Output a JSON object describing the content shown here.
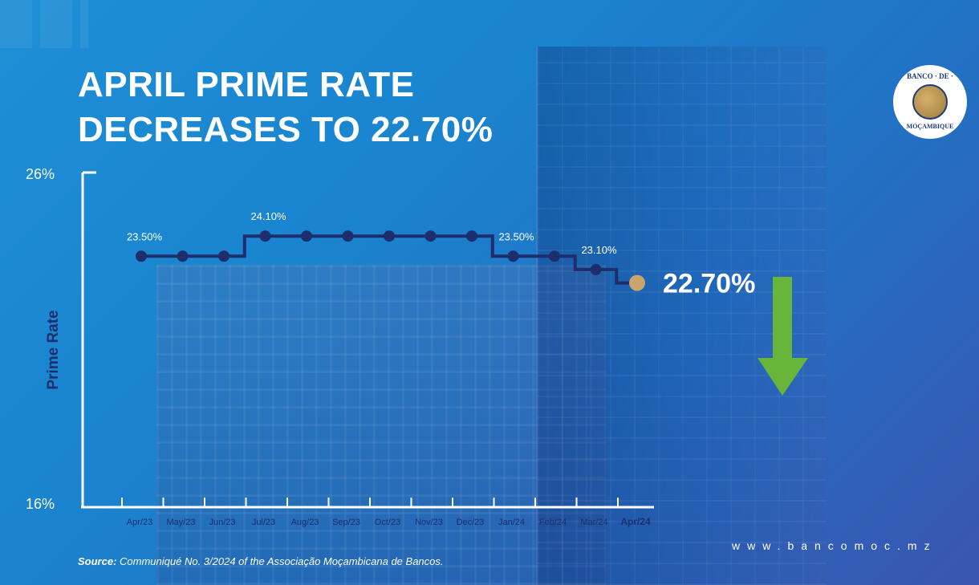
{
  "title_line1": "APRIL PRIME RATE",
  "title_line2": "DECREASES TO 22.70%",
  "logo": {
    "top_text": "BANCO · DE ·",
    "bottom_text": "MOÇAMBIQUE"
  },
  "source_label": "Source:",
  "source_text": "Communiqué No. 3/2024 of the Associação Moçambicana de Bancos.",
  "website": "www.bancomoc.mz",
  "colors": {
    "line": "#1e2d6b",
    "highlight_point": "#c9a46c",
    "arrow": "#67b53a",
    "text": "#ffffff"
  },
  "arrow_icon": "down-arrow-icon",
  "chart_data": {
    "type": "line",
    "step": true,
    "ylabel": "Prime Rate",
    "xlabel": "",
    "ylim": [
      16,
      26
    ],
    "y_tick_labels": [
      "26%",
      "16%"
    ],
    "categories": [
      "Apr/23",
      "May/23",
      "Jun/23",
      "Jul/23",
      "Aug/23",
      "Sep/23",
      "Oct/23",
      "Nov/23",
      "Dec/23",
      "Jan/24",
      "Feb/24",
      "Mar/24",
      "Apr/24"
    ],
    "values": [
      23.5,
      23.5,
      23.5,
      24.1,
      24.1,
      24.1,
      24.1,
      24.1,
      24.1,
      23.5,
      23.5,
      23.1,
      22.7
    ],
    "annotations": [
      {
        "index": 0,
        "text": "23.50%"
      },
      {
        "index": 3,
        "text": "24.10%"
      },
      {
        "index": 9,
        "text": "23.50%"
      },
      {
        "index": 11,
        "text": "23.10%"
      },
      {
        "index": 12,
        "text": "22.70%",
        "highlight": true
      }
    ],
    "grid": false
  }
}
